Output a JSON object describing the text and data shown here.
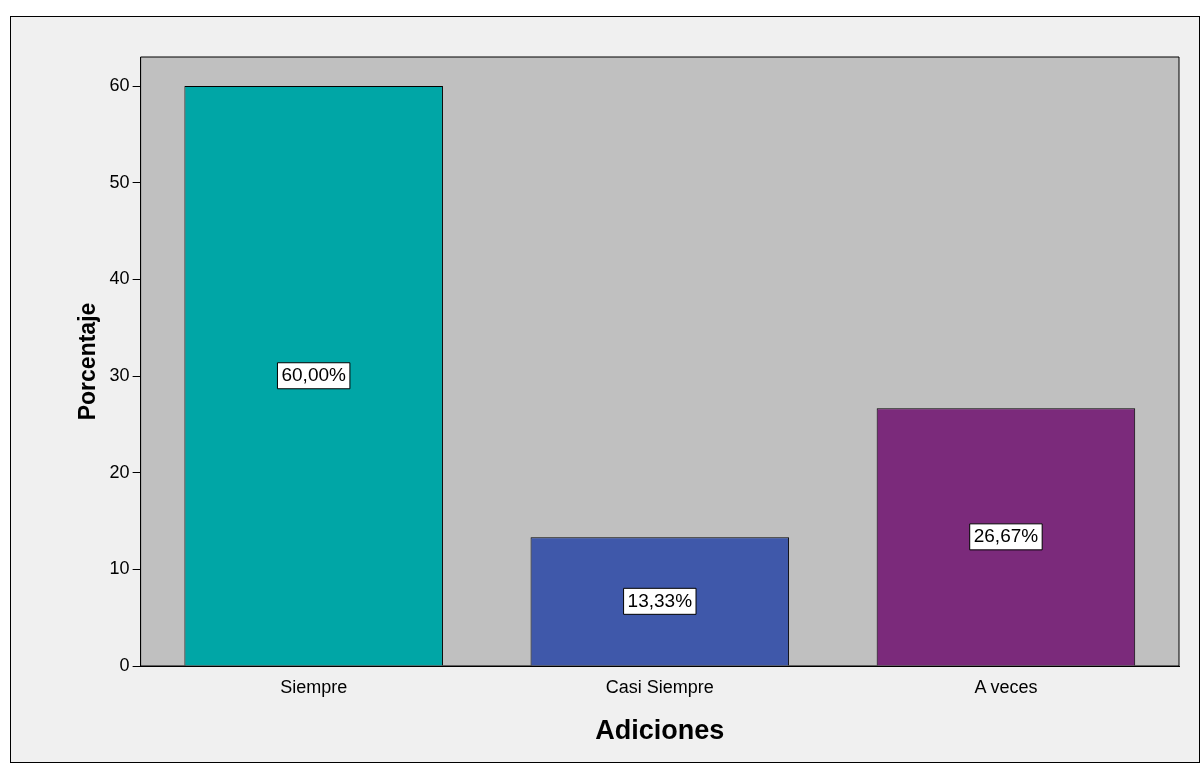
{
  "chart_data": {
    "type": "bar",
    "xlabel": "Adiciones",
    "ylabel": "Porcentaje",
    "categories": [
      "Siempre",
      "Casi Siempre",
      "A veces"
    ],
    "values": [
      60,
      13.33,
      26.67
    ],
    "colors": [
      "#00a6a6",
      "#3f58aa",
      "#7b2a7b"
    ],
    "value_labels": [
      "60,00%",
      "13,33%",
      "26,67%"
    ],
    "ylim": [
      0,
      63
    ],
    "yticks": [
      0,
      10,
      20,
      30,
      40,
      50,
      60
    ],
    "grid": false,
    "legend": false
  }
}
